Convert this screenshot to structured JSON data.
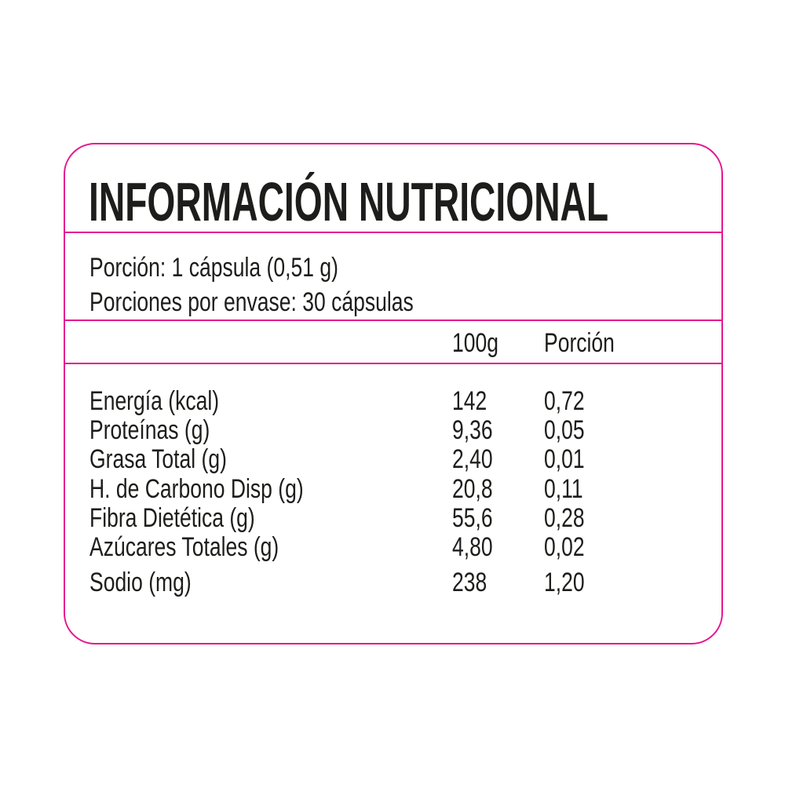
{
  "title": "INFORMACIÓN NUTRICIONAL",
  "serving": "Porción: 1 cápsula (0,51 g)",
  "servings_per_container": "Porciones por envase: 30 cápsulas",
  "columns": [
    "100g",
    "Porción"
  ],
  "rows": [
    {
      "label": "Energía (kcal)",
      "per100": "142",
      "portion": "0,72"
    },
    {
      "label": "Proteínas (g)",
      "per100": "9,36",
      "portion": "0,05"
    },
    {
      "label": "Grasa Total (g)",
      "per100": "2,40",
      "portion": "0,01"
    },
    {
      "label": "H. de Carbono Disp (g)",
      "per100": "20,8",
      "portion": "0,11"
    },
    {
      "label": "Fibra Dietética (g)",
      "per100": "55,6",
      "portion": "0,28"
    },
    {
      "label": "Azúcares Totales (g)",
      "per100": "4,80",
      "portion": "0,02"
    },
    {
      "label": "Sodio (mg)",
      "per100": "238",
      "portion": "1,20"
    }
  ],
  "colors": {
    "border": "#e5178f",
    "text": "#1d1d1b"
  }
}
